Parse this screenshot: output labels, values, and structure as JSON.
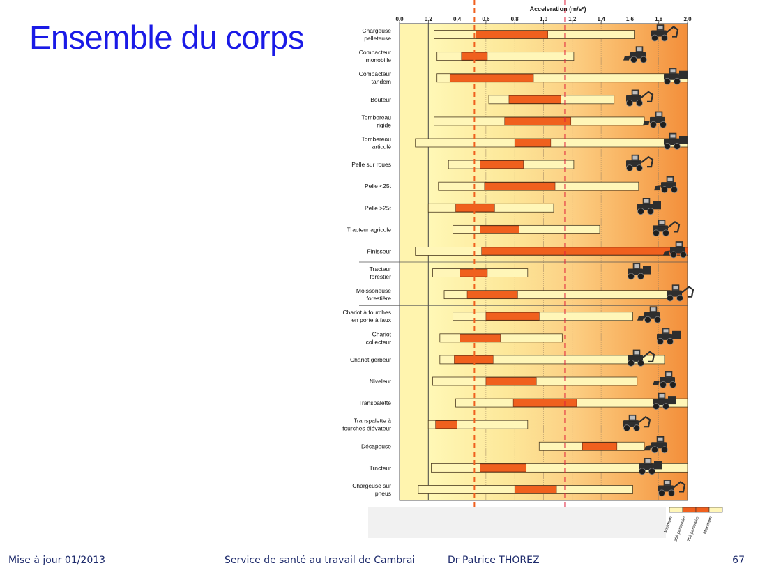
{
  "slide": {
    "title": "Ensemble du corps",
    "footer_left": "Mise à jour 01/2013",
    "footer_center": "Service de santé au travail de Cambrai",
    "footer_author": "Dr Patrice THOREZ",
    "page_number": "67"
  },
  "colors": {
    "title": "#1a1ae6",
    "bar_light": "#fff6b8",
    "bar_dark": "#f0601e",
    "zone_low": "#fff4ae",
    "zone_high": "#f59642",
    "ref_line_orange": "#f0601e",
    "ref_line_red": "#e0203a"
  },
  "chart_data": {
    "type": "bar",
    "subtype": "floating range (min / 30th percentile / 70th percentile / max)",
    "xlabel": "Acceleration (m/s²)",
    "xlim": [
      0.0,
      2.0
    ],
    "x_ticks": [
      "0,0",
      "0,2",
      "0,4",
      "0,6",
      "0,8",
      "1,0",
      "1,2",
      "1,4",
      "1,6",
      "1,8",
      "2,0"
    ],
    "reference_lines": [
      0.52,
      1.15
    ],
    "legend": [
      "Minimum",
      "30è percentile",
      "70è percentile",
      "Maximum"
    ],
    "categories": [
      [
        "Chargeuse",
        "pelleteuse"
      ],
      [
        "Compacteur",
        "monobille"
      ],
      [
        "Compacteur",
        "tandem"
      ],
      [
        "Bouteur"
      ],
      [
        "Tombereau",
        "rigide"
      ],
      [
        "Tombereau",
        "articulé"
      ],
      [
        "Pelle sur roues"
      ],
      [
        "Pelle <25t"
      ],
      [
        "Pelle >25t"
      ],
      [
        "Tracteur agricole"
      ],
      [
        "Finisseur"
      ],
      [
        "Tracteur",
        "forestier"
      ],
      [
        "Moissoneuse",
        "forestière"
      ],
      [
        "Chariot à fourches",
        "en porte à faux"
      ],
      [
        "Chariot",
        "collecteur"
      ],
      [
        "Chariot gerbeur"
      ],
      [
        "Niveleur"
      ],
      [
        "Transpalette"
      ],
      [
        "Transpalette à",
        "fourches élévateur"
      ],
      [
        "Décapeuse"
      ],
      [
        "Tracteur"
      ],
      [
        "Chargeuse sur",
        "pneus"
      ]
    ],
    "min": [
      0.24,
      0.26,
      0.26,
      0.62,
      0.24,
      0.11,
      0.34,
      0.27,
      0.2,
      0.37,
      0.11,
      0.23,
      0.31,
      0.37,
      0.28,
      0.28,
      0.23,
      0.39,
      0.2,
      0.97,
      0.22,
      0.13
    ],
    "p30": [
      0.53,
      0.43,
      0.35,
      0.76,
      0.73,
      0.8,
      0.56,
      0.59,
      0.39,
      0.56,
      0.57,
      0.42,
      0.47,
      0.6,
      0.42,
      0.38,
      0.6,
      0.79,
      0.25,
      1.27,
      0.56,
      0.8
    ],
    "p70": [
      1.03,
      0.61,
      0.93,
      1.12,
      1.19,
      1.05,
      0.86,
      1.08,
      0.66,
      0.83,
      2.0,
      0.61,
      0.82,
      0.97,
      0.7,
      0.65,
      0.95,
      1.23,
      0.4,
      1.51,
      0.88,
      1.09
    ],
    "max": [
      1.63,
      1.21,
      2.0,
      1.49,
      1.7,
      2.0,
      1.21,
      1.66,
      1.07,
      1.39,
      2.0,
      0.89,
      1.88,
      1.62,
      1.13,
      1.84,
      1.65,
      2.0,
      0.89,
      1.7,
      2.0,
      1.62
    ]
  }
}
